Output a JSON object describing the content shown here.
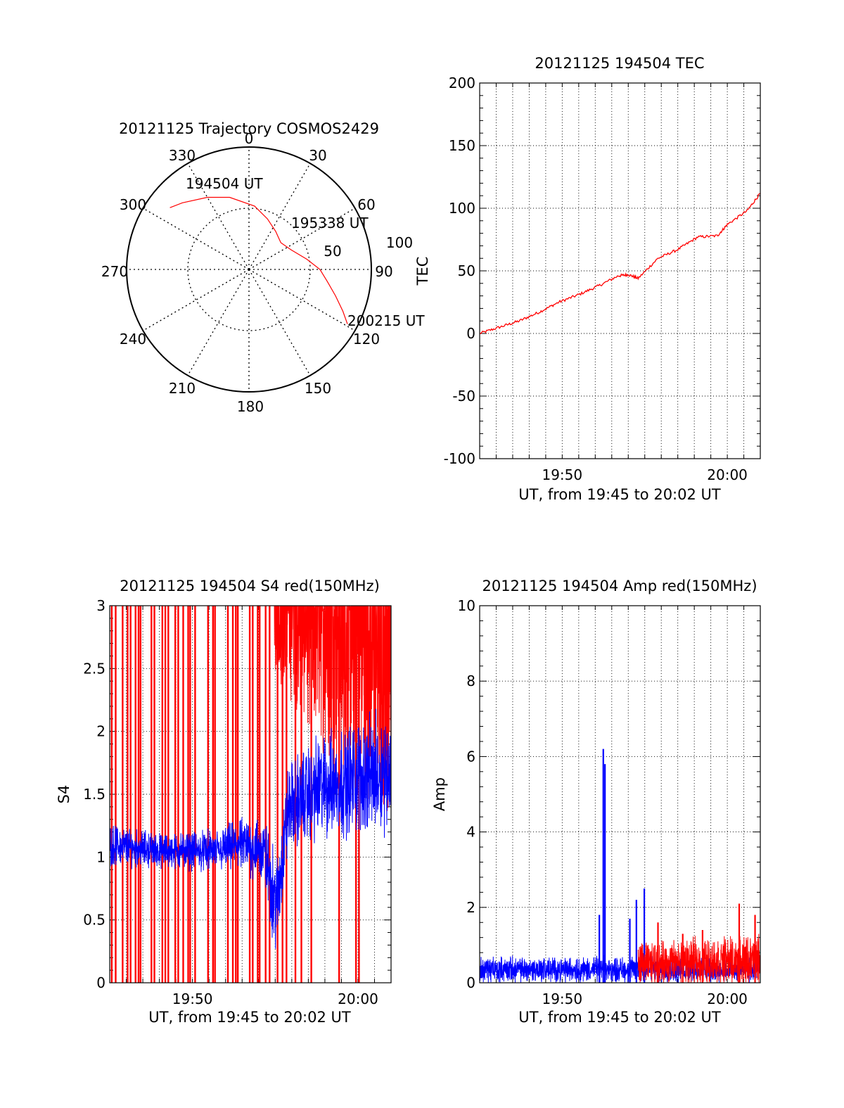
{
  "colors": {
    "red": "#ff0000",
    "blue": "#0000ff",
    "axis": "#000000",
    "grid": "#000000"
  },
  "chart_data": [
    {
      "id": "polar",
      "type": "polar-trajectory",
      "title": "20121125 Trajectory COSMOS2429",
      "azimuth_labels": [
        "0",
        "30",
        "60",
        "90",
        "120",
        "150",
        "180",
        "210",
        "240",
        "270",
        "300",
        "330"
      ],
      "radial_ticks": [
        "50",
        "100"
      ],
      "rmax": 100,
      "trajectory": {
        "color": "red",
        "points": [
          [
            308,
            82
          ],
          [
            315,
            77
          ],
          [
            330,
            68
          ],
          [
            345,
            61
          ],
          [
            5,
            52
          ],
          [
            20,
            44
          ],
          [
            35,
            38
          ],
          [
            50,
            34
          ],
          [
            65,
            38
          ],
          [
            80,
            48
          ],
          [
            90,
            58
          ],
          [
            99,
            65
          ],
          [
            107,
            74
          ],
          [
            114,
            84
          ],
          [
            119,
            92
          ]
        ]
      },
      "annotations": [
        {
          "text": "194504 UT",
          "az": 308,
          "r": 82
        },
        {
          "text": "195338 UT",
          "az": 50,
          "r": 34
        },
        {
          "text": "200215 UT",
          "az": 119,
          "r": 92
        }
      ]
    },
    {
      "id": "tec",
      "type": "line",
      "title": "20121125 194504 TEC",
      "ylabel": "TEC",
      "xlabel": "UT, from 19:45 to 20:02 UT",
      "xlim": [
        19.75,
        20.0333
      ],
      "ylim": [
        -100,
        200
      ],
      "yticks": [
        "-100",
        "-50",
        "0",
        "50",
        "100",
        "150",
        "200"
      ],
      "xticks": [
        {
          "value": 19.8333,
          "label": "19:50"
        },
        {
          "value": 20.0,
          "label": "20:00"
        }
      ],
      "series": [
        {
          "color": "red",
          "points": [
            [
              19.75,
              0
            ],
            [
              19.77,
              5
            ],
            [
              19.79,
              10
            ],
            [
              19.81,
              17
            ],
            [
              19.83,
              25
            ],
            [
              19.85,
              31
            ],
            [
              19.87,
              38
            ],
            [
              19.89,
              46
            ],
            [
              19.9,
              47
            ],
            [
              19.91,
              44
            ],
            [
              19.93,
              60
            ],
            [
              19.95,
              67
            ],
            [
              19.97,
              77
            ],
            [
              19.99,
              78
            ],
            [
              20.0,
              87
            ],
            [
              20.02,
              98
            ],
            [
              20.0333,
              112
            ]
          ]
        }
      ]
    },
    {
      "id": "s4",
      "type": "line",
      "title": "20121125 194504 S4 red(150MHz)",
      "ylabel": "S4",
      "xlabel": "UT, from 19:45 to 20:02 UT",
      "xlim": [
        19.75,
        20.0333
      ],
      "ylim": [
        0,
        3
      ],
      "yticks": [
        "0",
        "0.5",
        "1",
        "1.5",
        "2",
        "2.5",
        "3"
      ],
      "xticks": [
        {
          "value": 19.8333,
          "label": "19:50"
        },
        {
          "value": 20.0,
          "label": "20:00"
        }
      ],
      "series": [
        {
          "color": "red",
          "style": "spikes",
          "spike_times": [
            19.752,
            19.756,
            19.763,
            19.768,
            19.771,
            19.776,
            19.779,
            19.781,
            19.792,
            19.795,
            19.803,
            19.806,
            19.809,
            19.816,
            19.819,
            19.824,
            19.829,
            19.831,
            19.836,
            19.849,
            19.854,
            19.856,
            19.869,
            19.874,
            19.877,
            19.879,
            19.891,
            19.894,
            19.899,
            19.901,
            19.907,
            19.911,
            19.919,
            19.924,
            19.928,
            19.937,
            19.943,
            19.953,
            19.981,
            19.998,
            20.001
          ]
        },
        {
          "color": "red",
          "style": "band",
          "band": [
            [
              19.915,
              2.4,
              3.0
            ],
            [
              19.95,
              2.0,
              3.0
            ],
            [
              19.98,
              1.6,
              3.0
            ],
            [
              20.0333,
              1.3,
              3.0
            ]
          ]
        },
        {
          "color": "blue",
          "style": "noise",
          "profile": [
            [
              19.75,
              1.1,
              0.12
            ],
            [
              19.8,
              1.05,
              0.1
            ],
            [
              19.86,
              1.05,
              0.12
            ],
            [
              19.88,
              1.1,
              0.15
            ],
            [
              19.905,
              1.05,
              0.2
            ],
            [
              19.918,
              0.6,
              0.3
            ],
            [
              19.93,
              1.4,
              0.25
            ],
            [
              19.96,
              1.55,
              0.3
            ],
            [
              20.0333,
              1.7,
              0.35
            ]
          ]
        }
      ]
    },
    {
      "id": "amp",
      "type": "line",
      "title": "20121125 194504 Amp red(150MHz)",
      "ylabel": "Amp",
      "xlabel": "UT, from 19:45 to 20:02 UT",
      "xlim": [
        19.75,
        20.0333
      ],
      "ylim": [
        0,
        10
      ],
      "yticks": [
        "0",
        "2",
        "4",
        "6",
        "8",
        "10"
      ],
      "xticks": [
        {
          "value": 19.8333,
          "label": "19:50"
        },
        {
          "value": 20.0,
          "label": "20:00"
        }
      ],
      "series": [
        {
          "color": "blue",
          "style": "noise",
          "profile": [
            [
              19.75,
              0.35,
              0.25
            ],
            [
              20.0333,
              0.35,
              0.25
            ]
          ]
        },
        {
          "color": "blue",
          "style": "peaks",
          "peaks": [
            [
              19.8708,
              1.8
            ],
            [
              19.8748,
              6.2
            ],
            [
              19.8765,
              5.8
            ],
            [
              19.9016,
              1.7
            ],
            [
              19.9082,
              2.2
            ],
            [
              19.9162,
              2.5
            ]
          ]
        },
        {
          "color": "red",
          "style": "noise",
          "profile": [
            [
              19.91,
              0.5,
              0.4
            ],
            [
              20.0333,
              0.6,
              0.5
            ]
          ]
        },
        {
          "color": "red",
          "style": "peaks",
          "peaks": [
            [
              19.93,
              1.6
            ],
            [
              19.955,
              1.3
            ],
            [
              19.975,
              1.4
            ],
            [
              20.012,
              2.1
            ],
            [
              20.028,
              1.8
            ]
          ]
        }
      ]
    }
  ]
}
